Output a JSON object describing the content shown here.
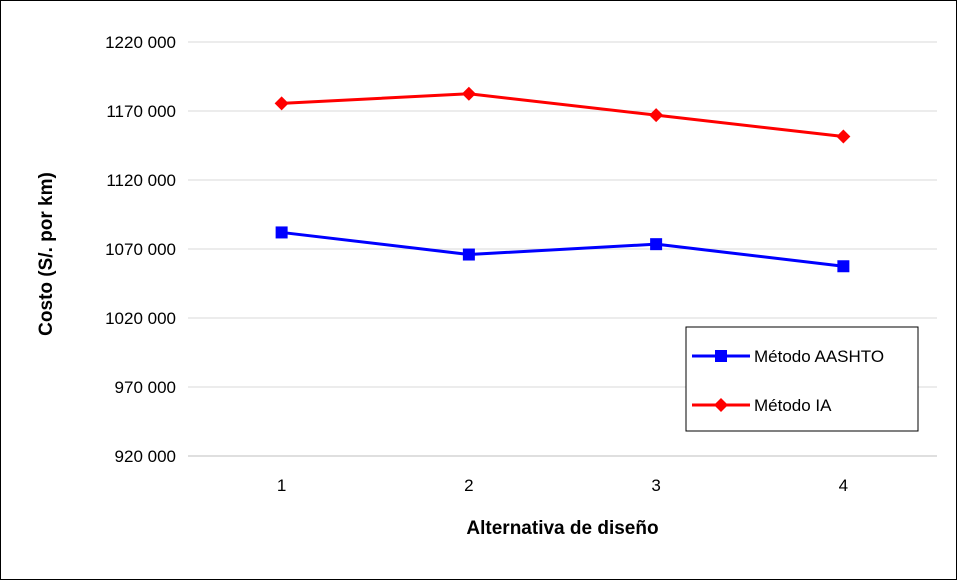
{
  "chart_data": {
    "type": "line",
    "title": "",
    "xlabel": "Alternativa de diseño",
    "ylabel": "Costo (S/. por km)",
    "categories": [
      "1",
      "2",
      "3",
      "4"
    ],
    "ylim": [
      920000,
      1220000
    ],
    "yticks": [
      920000,
      970000,
      1020000,
      1070000,
      1120000,
      1170000,
      1220000
    ],
    "ytick_labels": [
      "920 000",
      "970 000",
      "1020 000",
      "1070 000",
      "1120 000",
      "1170 000",
      "1220 000"
    ],
    "grid": true,
    "legend": "inside-bottom-right",
    "series": [
      {
        "name": "Método AASHTO",
        "color": "#0000FF",
        "marker": "square",
        "values": [
          1082000,
          1066000,
          1073500,
          1057500
        ]
      },
      {
        "name": "Método IA",
        "color": "#FF0000",
        "marker": "diamond",
        "values": [
          1175500,
          1182500,
          1167000,
          1151500
        ]
      }
    ]
  }
}
